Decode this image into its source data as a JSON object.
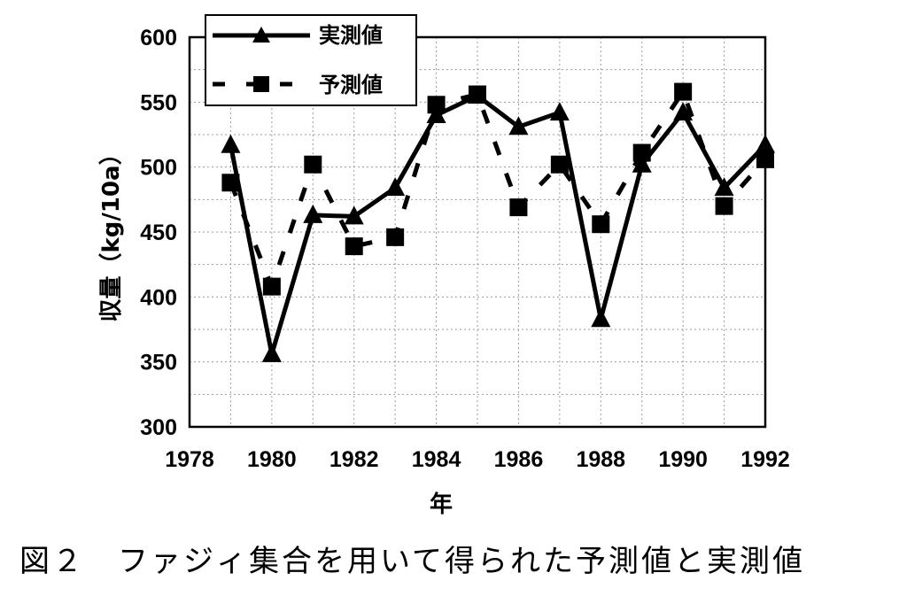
{
  "chart_data": {
    "type": "line",
    "xlabel": "年",
    "ylabel": "収量（kg/10a）",
    "xlim": [
      1978,
      1992
    ],
    "ylim": [
      300,
      600
    ],
    "xticks": [
      "1978",
      "1980",
      "1982",
      "1984",
      "1986",
      "1988",
      "1990",
      "1992"
    ],
    "yticks": [
      "300",
      "350",
      "400",
      "450",
      "500",
      "550",
      "600"
    ],
    "grid": true,
    "legend_position": "top-left",
    "x": [
      1979,
      1980,
      1981,
      1982,
      1983,
      1984,
      1985,
      1986,
      1987,
      1988,
      1989,
      1990,
      1991,
      1992
    ],
    "series": [
      {
        "name": "実測値",
        "marker": "triangle",
        "style": "solid",
        "color": "#000000",
        "values": [
          517,
          356,
          463,
          462,
          484,
          540,
          555,
          531,
          542,
          383,
          502,
          542,
          484,
          517
        ]
      },
      {
        "name": "予測値",
        "marker": "square",
        "style": "dashed",
        "color": "#000000",
        "values": [
          488,
          408,
          502,
          439,
          446,
          548,
          556,
          469,
          502,
          456,
          511,
          558,
          470,
          506
        ]
      }
    ]
  },
  "caption": "図２　ファジィ集合を用いて得られた予測値と実測値"
}
